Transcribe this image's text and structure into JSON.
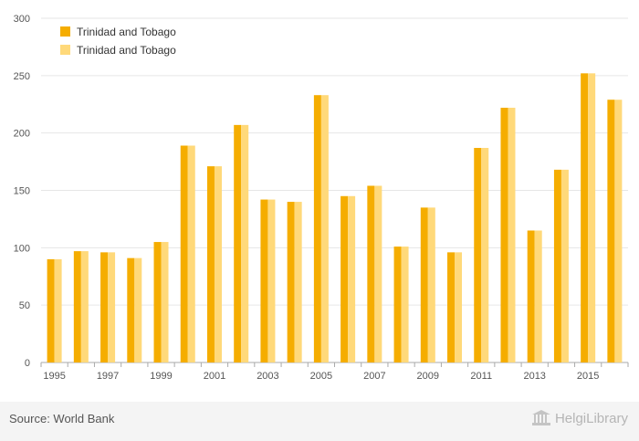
{
  "chart_data": {
    "type": "bar",
    "categories": [
      "1995",
      "1996",
      "1997",
      "1998",
      "1999",
      "2000",
      "2001",
      "2002",
      "2003",
      "2004",
      "2005",
      "2006",
      "2007",
      "2008",
      "2009",
      "2010",
      "2011",
      "2012",
      "2013",
      "2014",
      "2015",
      "2016"
    ],
    "x_tick_labels": [
      "1995",
      "1997",
      "1999",
      "2001",
      "2003",
      "2005",
      "2007",
      "2009",
      "2011",
      "2013",
      "2015"
    ],
    "series": [
      {
        "name": "Trinidad and Tobago",
        "color": "#f5ad00",
        "values": [
          90,
          97,
          96,
          91,
          105,
          189,
          171,
          207,
          142,
          140,
          233,
          145,
          154,
          101,
          135,
          96,
          187,
          222,
          115,
          168,
          252,
          229
        ]
      },
      {
        "name": "Trinidad and Tobago",
        "color": "#ffd97a",
        "values": [
          90,
          97,
          96,
          91,
          105,
          189,
          171,
          207,
          142,
          140,
          233,
          145,
          154,
          101,
          135,
          96,
          187,
          222,
          115,
          168,
          252,
          229
        ]
      }
    ],
    "ylim": [
      0,
      300
    ],
    "y_ticks": [
      0,
      50,
      100,
      150,
      200,
      250,
      300
    ],
    "grid": true,
    "legend_position": "top-left"
  },
  "footer": {
    "source": "Source: World Bank",
    "brand": "HelgiLibrary"
  },
  "colors": {
    "grid": "#e6e6e6",
    "axis": "#aaaaaa"
  }
}
